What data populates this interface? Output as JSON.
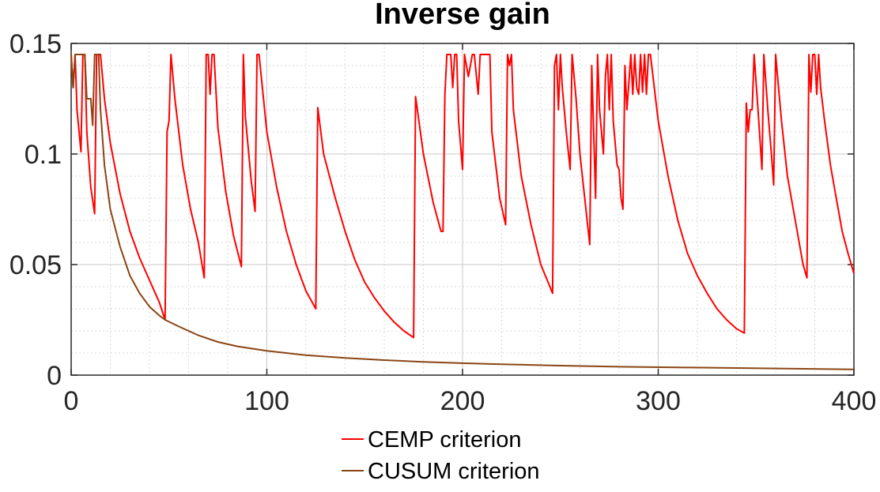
{
  "chart_data": {
    "type": "line",
    "title": "Inverse gain",
    "xlabel": "",
    "ylabel": "",
    "xlim": [
      0,
      400
    ],
    "ylim": [
      0,
      0.15
    ],
    "xticks": [
      "0",
      "100",
      "200",
      "300",
      "400"
    ],
    "yticks": [
      "0",
      "0.05",
      "0.1",
      "0.15"
    ],
    "grid": true,
    "minor_grid": true,
    "legend_position": "bottom",
    "series": [
      {
        "name": "CEMP criterion",
        "color": "#ff0000",
        "points": [
          [
            0,
            0.145
          ],
          [
            1,
            0.13
          ],
          [
            2,
            0.145
          ],
          [
            3,
            0.12
          ],
          [
            5,
            0.101
          ],
          [
            6,
            0.145
          ],
          [
            7,
            0.145
          ],
          [
            8,
            0.11
          ],
          [
            10,
            0.085
          ],
          [
            12,
            0.073
          ],
          [
            13,
            0.145
          ],
          [
            14,
            0.145
          ],
          [
            15,
            0.145
          ],
          [
            17,
            0.125
          ],
          [
            20,
            0.105
          ],
          [
            25,
            0.082
          ],
          [
            30,
            0.065
          ],
          [
            35,
            0.053
          ],
          [
            40,
            0.043
          ],
          [
            45,
            0.033
          ],
          [
            48,
            0.025
          ],
          [
            48,
            0.025
          ],
          [
            49,
            0.11
          ],
          [
            50,
            0.115
          ],
          [
            51,
            0.145
          ],
          [
            53,
            0.125
          ],
          [
            57,
            0.095
          ],
          [
            61,
            0.075
          ],
          [
            65,
            0.06
          ],
          [
            68,
            0.044
          ],
          [
            69,
            0.145
          ],
          [
            70,
            0.145
          ],
          [
            71,
            0.127
          ],
          [
            72,
            0.145
          ],
          [
            73,
            0.145
          ],
          [
            75,
            0.112
          ],
          [
            79,
            0.083
          ],
          [
            83,
            0.063
          ],
          [
            87,
            0.049
          ],
          [
            88,
            0.145
          ],
          [
            89,
            0.117
          ],
          [
            92,
            0.088
          ],
          [
            94,
            0.074
          ],
          [
            95,
            0.145
          ],
          [
            96,
            0.145
          ],
          [
            100,
            0.11
          ],
          [
            105,
            0.085
          ],
          [
            110,
            0.065
          ],
          [
            115,
            0.05
          ],
          [
            120,
            0.038
          ],
          [
            125,
            0.03
          ],
          [
            126,
            0.121
          ],
          [
            129,
            0.1
          ],
          [
            135,
            0.08
          ],
          [
            140,
            0.065
          ],
          [
            145,
            0.052
          ],
          [
            150,
            0.042
          ],
          [
            155,
            0.035
          ],
          [
            160,
            0.029
          ],
          [
            165,
            0.024
          ],
          [
            170,
            0.02
          ],
          [
            175,
            0.017
          ],
          [
            176,
            0.126
          ],
          [
            180,
            0.1
          ],
          [
            185,
            0.078
          ],
          [
            189,
            0.065
          ],
          [
            190,
            0.065
          ],
          [
            191,
            0.127
          ],
          [
            192,
            0.145
          ],
          [
            193,
            0.145
          ],
          [
            194,
            0.145
          ],
          [
            195,
            0.13
          ],
          [
            196,
            0.145
          ],
          [
            197,
            0.145
          ],
          [
            198,
            0.115
          ],
          [
            200,
            0.093
          ],
          [
            201,
            0.145
          ],
          [
            203,
            0.135
          ],
          [
            205,
            0.145
          ],
          [
            206,
            0.145
          ],
          [
            208,
            0.127
          ],
          [
            209,
            0.145
          ],
          [
            213,
            0.145
          ],
          [
            214,
            0.145
          ],
          [
            215,
            0.11
          ],
          [
            219,
            0.08
          ],
          [
            222,
            0.068
          ],
          [
            223,
            0.145
          ],
          [
            224,
            0.14
          ],
          [
            225,
            0.145
          ],
          [
            226,
            0.12
          ],
          [
            230,
            0.09
          ],
          [
            235,
            0.068
          ],
          [
            240,
            0.05
          ],
          [
            246,
            0.037
          ],
          [
            247,
            0.14
          ],
          [
            248,
            0.145
          ],
          [
            249,
            0.12
          ],
          [
            250,
            0.145
          ],
          [
            251,
            0.13
          ],
          [
            253,
            0.11
          ],
          [
            255,
            0.093
          ],
          [
            256,
            0.145
          ],
          [
            258,
            0.125
          ],
          [
            260,
            0.1
          ],
          [
            265,
            0.059
          ],
          [
            266,
            0.14
          ],
          [
            268,
            0.08
          ],
          [
            269,
            0.145
          ],
          [
            270,
            0.12
          ],
          [
            272,
            0.1
          ],
          [
            273,
            0.135
          ],
          [
            274,
            0.145
          ],
          [
            275,
            0.12
          ],
          [
            276,
            0.145
          ],
          [
            277,
            0.115
          ],
          [
            279,
            0.095
          ],
          [
            280,
            0.093
          ],
          [
            281,
            0.08
          ],
          [
            282,
            0.075
          ],
          [
            283,
            0.14
          ],
          [
            284,
            0.12
          ],
          [
            286,
            0.145
          ],
          [
            287,
            0.127
          ],
          [
            288,
            0.145
          ],
          [
            289,
            0.13
          ],
          [
            290,
            0.127
          ],
          [
            291,
            0.145
          ],
          [
            292,
            0.128
          ],
          [
            293,
            0.145
          ],
          [
            294,
            0.127
          ],
          [
            295,
            0.145
          ],
          [
            296,
            0.145
          ],
          [
            296,
            0.145
          ],
          [
            300,
            0.115
          ],
          [
            305,
            0.09
          ],
          [
            310,
            0.07
          ],
          [
            315,
            0.055
          ],
          [
            320,
            0.045
          ],
          [
            325,
            0.037
          ],
          [
            330,
            0.03
          ],
          [
            335,
            0.025
          ],
          [
            340,
            0.021
          ],
          [
            344,
            0.019
          ],
          [
            345,
            0.123
          ],
          [
            346,
            0.11
          ],
          [
            347,
            0.12
          ],
          [
            348,
            0.12
          ],
          [
            349,
            0.145
          ],
          [
            351,
            0.12
          ],
          [
            353,
            0.093
          ],
          [
            354,
            0.145
          ],
          [
            356,
            0.12
          ],
          [
            358,
            0.098
          ],
          [
            359,
            0.086
          ],
          [
            360,
            0.145
          ],
          [
            363,
            0.115
          ],
          [
            366,
            0.09
          ],
          [
            370,
            0.07
          ],
          [
            374,
            0.05
          ],
          [
            376,
            0.044
          ],
          [
            377,
            0.145
          ],
          [
            378,
            0.128
          ],
          [
            379,
            0.145
          ],
          [
            380,
            0.145
          ],
          [
            381,
            0.127
          ],
          [
            382,
            0.145
          ],
          [
            383,
            0.13
          ],
          [
            385,
            0.115
          ],
          [
            388,
            0.095
          ],
          [
            391,
            0.08
          ],
          [
            394,
            0.065
          ],
          [
            397,
            0.055
          ],
          [
            400,
            0.046
          ]
        ]
      },
      {
        "name": "CUSUM criterion",
        "color": "#8b4513",
        "points": [
          [
            0,
            0.145
          ],
          [
            1,
            0.13
          ],
          [
            2,
            0.145
          ],
          [
            3,
            0.145
          ],
          [
            5,
            0.145
          ],
          [
            7,
            0.145
          ],
          [
            8,
            0.125
          ],
          [
            10,
            0.125
          ],
          [
            11,
            0.113
          ],
          [
            12,
            0.145
          ],
          [
            13,
            0.145
          ],
          [
            14,
            0.145
          ],
          [
            15,
            0.12
          ],
          [
            17,
            0.095
          ],
          [
            20,
            0.075
          ],
          [
            25,
            0.058
          ],
          [
            30,
            0.045
          ],
          [
            35,
            0.037
          ],
          [
            40,
            0.031
          ],
          [
            45,
            0.027
          ],
          [
            48,
            0.025
          ],
          [
            55,
            0.022
          ],
          [
            65,
            0.018
          ],
          [
            75,
            0.015
          ],
          [
            85,
            0.013
          ],
          [
            100,
            0.011
          ],
          [
            120,
            0.009
          ],
          [
            140,
            0.0078
          ],
          [
            160,
            0.0068
          ],
          [
            180,
            0.006
          ],
          [
            200,
            0.0054
          ],
          [
            220,
            0.0049
          ],
          [
            250,
            0.0043
          ],
          [
            280,
            0.0038
          ],
          [
            310,
            0.0035
          ],
          [
            340,
            0.0032
          ],
          [
            370,
            0.0029
          ],
          [
            400,
            0.0026
          ]
        ]
      }
    ]
  }
}
